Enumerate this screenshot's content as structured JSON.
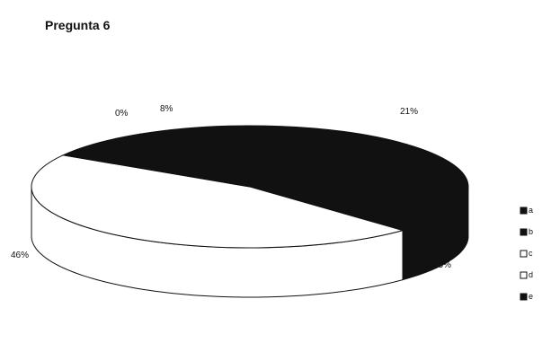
{
  "chart_data": {
    "type": "pie",
    "title": "Pregunta 6",
    "style": "3d-pie",
    "categories": [
      "a",
      "b",
      "c",
      "d",
      "e"
    ],
    "values": [
      21,
      25,
      46,
      0,
      8
    ],
    "labels": [
      "21%",
      "25%",
      "46%",
      "0%",
      "8%"
    ],
    "colors": [
      "#111111",
      "#111111",
      "#ffffff",
      "#ffffff",
      "#111111"
    ],
    "legend_position": "right"
  }
}
